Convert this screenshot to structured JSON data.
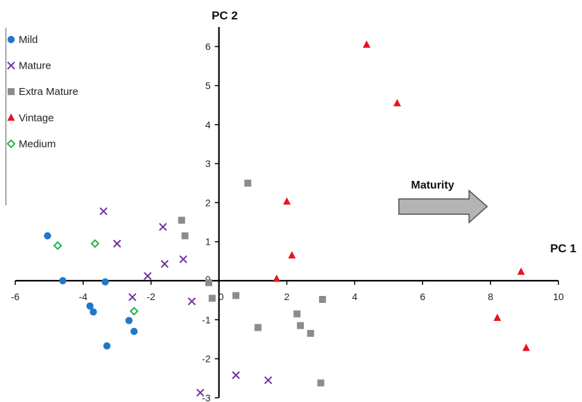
{
  "chart_data": {
    "type": "scatter",
    "title": "",
    "xlabel": "PC 1",
    "ylabel": "PC 2",
    "xlim": [
      -6,
      10
    ],
    "ylim": [
      -3,
      6.5
    ],
    "x_ticks": [
      -6,
      -4,
      -2,
      0,
      2,
      4,
      6,
      8,
      10
    ],
    "y_ticks": [
      -3,
      -2,
      -1,
      0,
      1,
      2,
      3,
      4,
      5,
      6
    ],
    "grid": false,
    "legend_position": "top-left",
    "annotation": {
      "text": "Maturity",
      "arrow_from": [
        5.3,
        1.9
      ],
      "arrow_to": [
        7.9,
        1.9
      ]
    },
    "series": [
      {
        "name": "Mild",
        "marker": "circle",
        "color": "#1f78c8",
        "points": [
          [
            -5.05,
            1.15
          ],
          [
            -4.6,
            0.0
          ],
          [
            -3.35,
            -0.03
          ],
          [
            -3.8,
            -0.65
          ],
          [
            -3.7,
            -0.8
          ],
          [
            -2.65,
            -1.02
          ],
          [
            -2.5,
            -1.3
          ],
          [
            -3.3,
            -1.67
          ]
        ]
      },
      {
        "name": "Mature",
        "marker": "x",
        "color": "#7030a0",
        "points": [
          [
            -3.4,
            1.78
          ],
          [
            -3.0,
            0.95
          ],
          [
            -1.65,
            1.38
          ],
          [
            -1.6,
            0.43
          ],
          [
            -1.05,
            0.55
          ],
          [
            -2.1,
            0.12
          ],
          [
            -2.55,
            -0.42
          ],
          [
            -0.8,
            -0.53
          ],
          [
            0.5,
            -2.42
          ],
          [
            1.45,
            -2.55
          ],
          [
            -0.55,
            -2.87
          ]
        ]
      },
      {
        "name": "Extra Mature",
        "marker": "square",
        "color": "#8c8c8c",
        "points": [
          [
            0.85,
            2.5
          ],
          [
            -1.1,
            1.55
          ],
          [
            -1.0,
            1.15
          ],
          [
            -0.3,
            -0.05
          ],
          [
            -0.2,
            -0.45
          ],
          [
            0.5,
            -0.38
          ],
          [
            3.05,
            -0.48
          ],
          [
            2.3,
            -0.85
          ],
          [
            2.4,
            -1.15
          ],
          [
            2.7,
            -1.35
          ],
          [
            1.15,
            -1.2
          ],
          [
            3.0,
            -2.62
          ]
        ]
      },
      {
        "name": "Vintage",
        "marker": "triangle",
        "color": "#e8141e",
        "points": [
          [
            4.35,
            6.05
          ],
          [
            5.25,
            4.55
          ],
          [
            2.0,
            2.03
          ],
          [
            2.15,
            0.65
          ],
          [
            1.7,
            0.05
          ],
          [
            8.9,
            0.23
          ],
          [
            8.2,
            -0.95
          ],
          [
            9.05,
            -1.72
          ]
        ]
      },
      {
        "name": "Medium",
        "marker": "diamond",
        "color": "#22b14c",
        "points": [
          [
            -4.75,
            0.9
          ],
          [
            -3.65,
            0.95
          ],
          [
            -2.5,
            -0.78
          ]
        ]
      }
    ]
  }
}
